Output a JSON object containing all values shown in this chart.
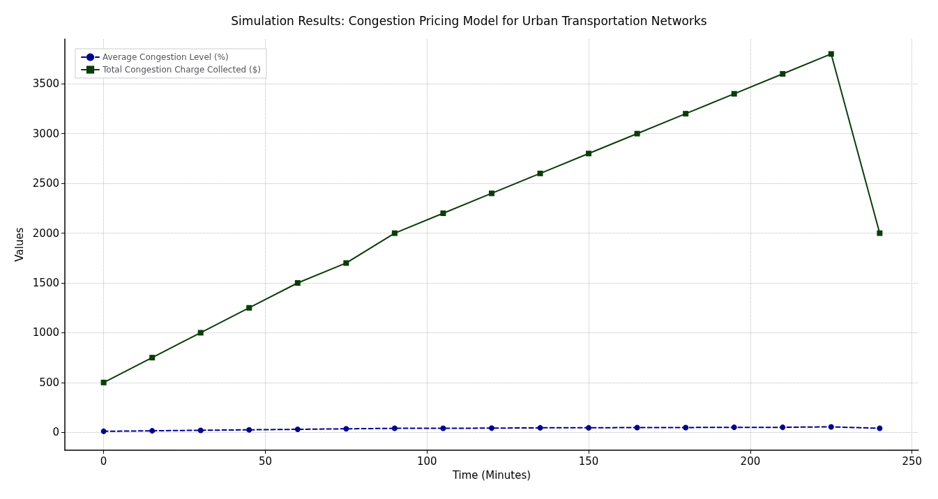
{
  "chart_data": {
    "type": "line",
    "title": "Simulation Results: Congestion Pricing Model for Urban Transportation Networks",
    "xlabel": "Time (Minutes)",
    "ylabel": "Values",
    "x": [
      0,
      15,
      30,
      45,
      60,
      75,
      90,
      105,
      120,
      135,
      150,
      165,
      180,
      195,
      210,
      225,
      240
    ],
    "series": [
      {
        "name": "Average Congestion Level (%)",
        "color": "#00008b",
        "marker": "circle",
        "line_style": "dashed",
        "values": [
          10,
          15,
          20,
          25,
          30,
          35,
          40,
          40,
          42,
          45,
          45,
          48,
          48,
          50,
          50,
          55,
          40
        ]
      },
      {
        "name": "Total Congestion Charge Collected ($)",
        "color": "#0b3d0b",
        "marker": "square",
        "line_style": "solid",
        "values": [
          500,
          750,
          1000,
          1250,
          1500,
          1700,
          2000,
          2200,
          2400,
          2600,
          2800,
          3000,
          3200,
          3400,
          3600,
          3800,
          2000
        ]
      }
    ],
    "xlim": [
      -12,
      252
    ],
    "xticks": [
      0,
      50,
      100,
      150,
      200,
      250
    ],
    "ylim": [
      -180,
      3950
    ],
    "yticks": [
      0,
      500,
      1000,
      1500,
      2000,
      2500,
      3000,
      3500
    ],
    "grid": true,
    "legend": "top left"
  }
}
